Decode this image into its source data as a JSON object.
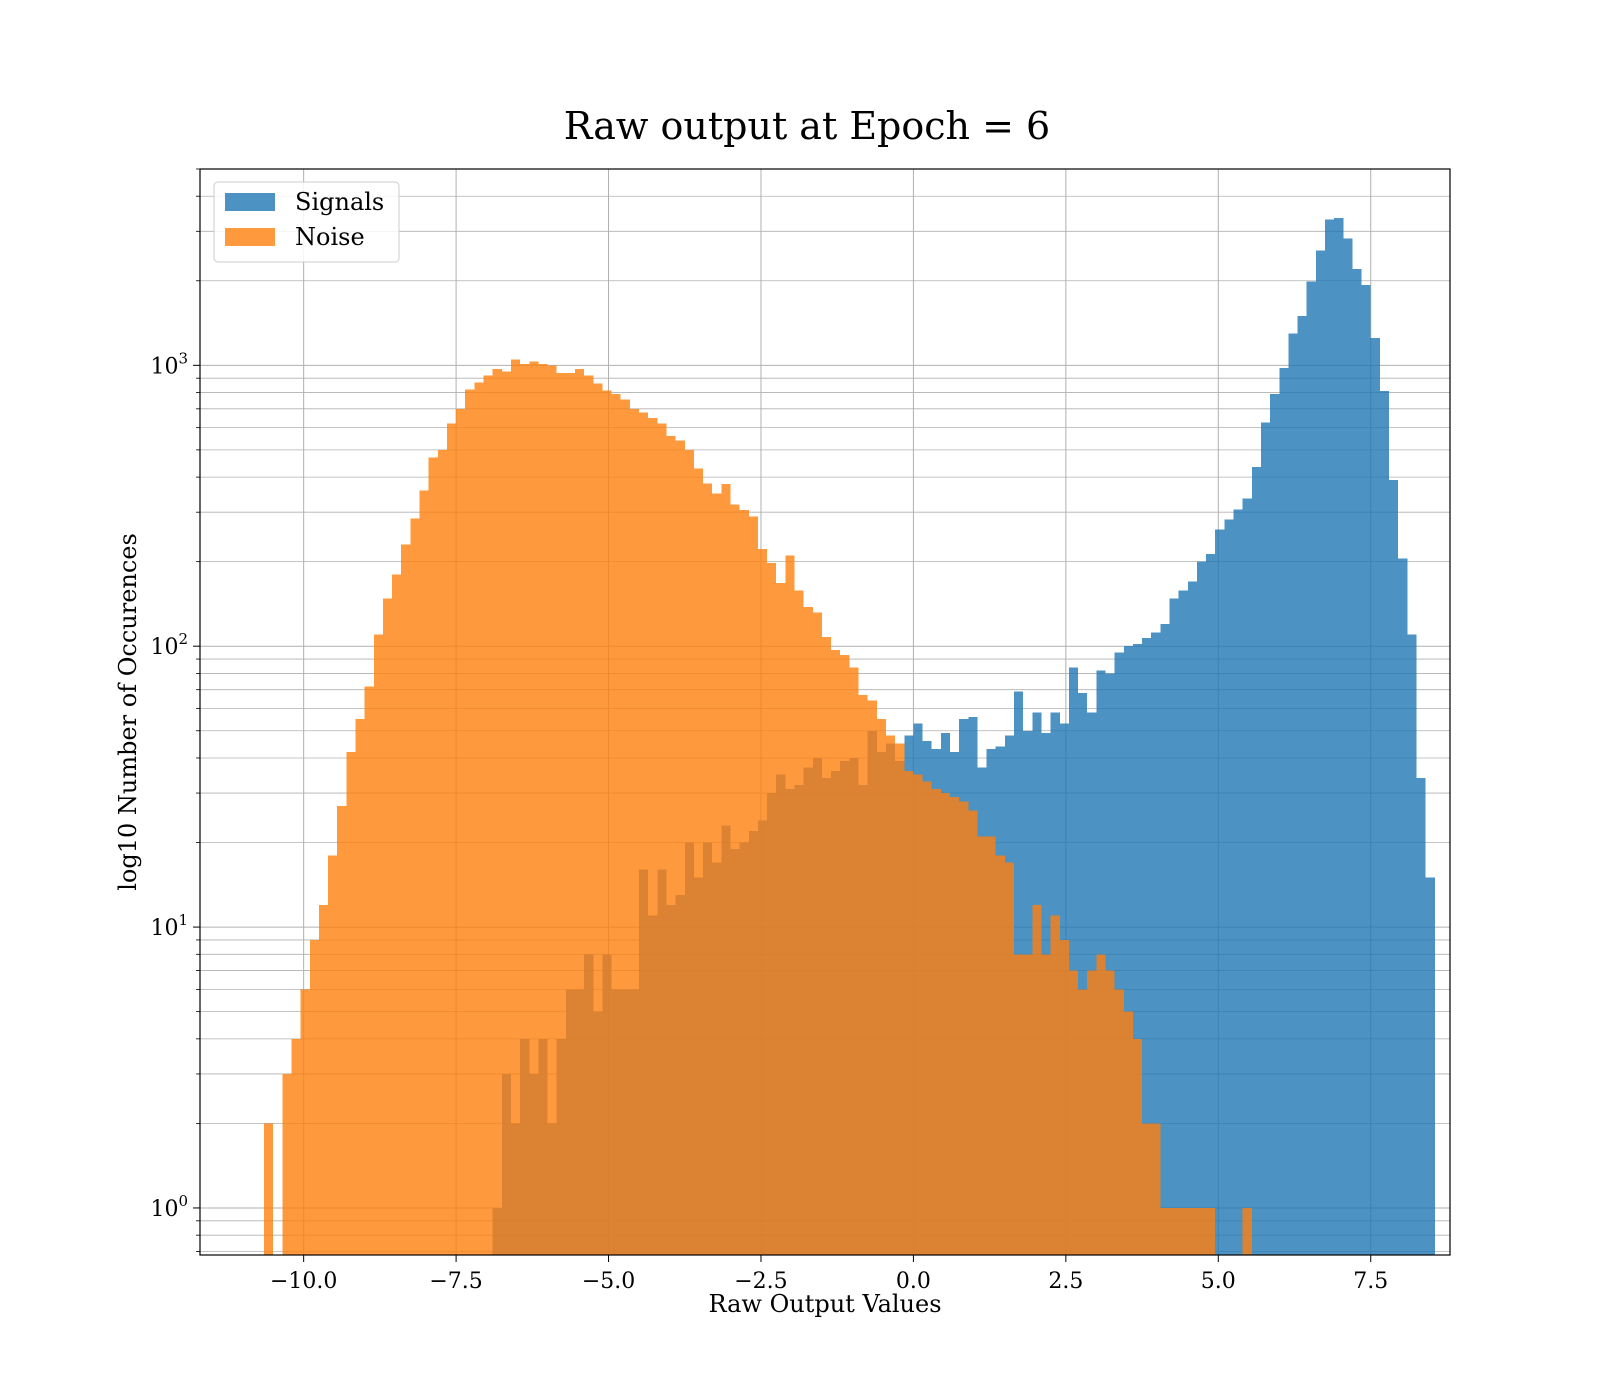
{
  "chart_data": {
    "type": "bar",
    "title": "Raw output at Epoch = 6",
    "xlabel": "Raw Output Values",
    "ylabel": "log10 Number of Occurences",
    "xscale": "linear",
    "yscale": "log",
    "xlim": [
      -11.7,
      8.8
    ],
    "ylim": [
      0.68,
      5000
    ],
    "grid": true,
    "legend": "top-left",
    "xticks": [
      {
        "value": -10,
        "label": "−10.0"
      },
      {
        "value": -7.5,
        "label": "−7.5"
      },
      {
        "value": -5,
        "label": "−5.0"
      },
      {
        "value": -2.5,
        "label": "−2.5"
      },
      {
        "value": 0,
        "label": "0.0"
      },
      {
        "value": 2.5,
        "label": "2.5"
      },
      {
        "value": 5,
        "label": "5.0"
      },
      {
        "value": 7.5,
        "label": "7.5"
      }
    ],
    "yticks": [
      {
        "value": 1,
        "base": "10",
        "exp": "0"
      },
      {
        "value": 10,
        "base": "10",
        "exp": "1"
      },
      {
        "value": 100,
        "base": "10",
        "exp": "2"
      },
      {
        "value": 1000,
        "base": "10",
        "exp": "3"
      }
    ],
    "series": [
      {
        "name": "Signals",
        "color": "#1f77b4",
        "opacity": 0.8,
        "bins": [
          [
            -6.9,
            -6.75,
            1
          ],
          [
            -6.75,
            -6.6,
            3
          ],
          [
            -6.6,
            -6.45,
            2
          ],
          [
            -6.45,
            -6.3,
            4
          ],
          [
            -6.3,
            -6.15,
            3
          ],
          [
            -6.15,
            -6.0,
            4
          ],
          [
            -6.0,
            -5.85,
            2
          ],
          [
            -5.85,
            -5.7,
            4
          ],
          [
            -5.7,
            -5.4,
            6
          ],
          [
            -5.4,
            -5.25,
            8
          ],
          [
            -5.25,
            -5.1,
            5
          ],
          [
            -5.1,
            -4.95,
            8
          ],
          [
            -4.95,
            -4.5,
            6
          ],
          [
            -4.5,
            -4.35,
            16
          ],
          [
            -4.35,
            -4.2,
            11
          ],
          [
            -4.2,
            -4.05,
            16
          ],
          [
            -4.05,
            -3.9,
            12
          ],
          [
            -3.9,
            -3.75,
            13
          ],
          [
            -3.75,
            -3.6,
            20
          ],
          [
            -3.6,
            -3.45,
            15
          ],
          [
            -3.45,
            -3.3,
            20
          ],
          [
            -3.3,
            -3.15,
            17
          ],
          [
            -3.15,
            -3.0,
            23
          ],
          [
            -3.0,
            -2.85,
            19
          ],
          [
            -2.85,
            -2.7,
            20
          ],
          [
            -2.7,
            -2.55,
            22
          ],
          [
            -2.55,
            -2.4,
            24
          ],
          [
            -2.4,
            -2.25,
            30
          ],
          [
            -2.25,
            -2.1,
            35
          ],
          [
            -2.1,
            -1.95,
            31
          ],
          [
            -1.95,
            -1.8,
            32
          ],
          [
            -1.8,
            -1.65,
            37
          ],
          [
            -1.65,
            -1.5,
            40
          ],
          [
            -1.5,
            -1.35,
            34
          ],
          [
            -1.35,
            -1.2,
            36
          ],
          [
            -1.2,
            -1.05,
            39
          ],
          [
            -1.05,
            -0.9,
            40
          ],
          [
            -0.9,
            -0.75,
            32
          ],
          [
            -0.75,
            -0.6,
            50
          ],
          [
            -0.6,
            -0.45,
            42
          ],
          [
            -0.45,
            -0.3,
            45
          ],
          [
            -0.3,
            -0.15,
            39
          ],
          [
            -0.15,
            0.0,
            48
          ],
          [
            0.0,
            0.15,
            53
          ],
          [
            0.15,
            0.3,
            46
          ],
          [
            0.3,
            0.45,
            43
          ],
          [
            0.45,
            0.6,
            49
          ],
          [
            0.6,
            0.75,
            42
          ],
          [
            0.75,
            0.9,
            55
          ],
          [
            0.9,
            1.05,
            56
          ],
          [
            1.05,
            1.2,
            37
          ],
          [
            1.2,
            1.35,
            43
          ],
          [
            1.35,
            1.5,
            44
          ],
          [
            1.5,
            1.65,
            48
          ],
          [
            1.65,
            1.8,
            69
          ],
          [
            1.8,
            1.95,
            50
          ],
          [
            1.95,
            2.1,
            58
          ],
          [
            2.1,
            2.25,
            49
          ],
          [
            2.25,
            2.4,
            58
          ],
          [
            2.4,
            2.55,
            53
          ],
          [
            2.55,
            2.7,
            84
          ],
          [
            2.7,
            2.85,
            68
          ],
          [
            2.85,
            3.0,
            58
          ],
          [
            3.0,
            3.15,
            82
          ],
          [
            3.15,
            3.3,
            80
          ],
          [
            3.3,
            3.45,
            95
          ],
          [
            3.45,
            3.6,
            100
          ],
          [
            3.6,
            3.75,
            102
          ],
          [
            3.75,
            3.9,
            107
          ],
          [
            3.9,
            4.05,
            112
          ],
          [
            4.05,
            4.2,
            120
          ],
          [
            4.2,
            4.35,
            148
          ],
          [
            4.35,
            4.5,
            158
          ],
          [
            4.5,
            4.65,
            170
          ],
          [
            4.65,
            4.8,
            200
          ],
          [
            4.8,
            4.95,
            213
          ],
          [
            4.95,
            5.1,
            260
          ],
          [
            5.1,
            5.25,
            282
          ],
          [
            5.25,
            5.4,
            307
          ],
          [
            5.4,
            5.55,
            335
          ],
          [
            5.55,
            5.7,
            435
          ],
          [
            5.7,
            5.85,
            625
          ],
          [
            5.85,
            6.0,
            790
          ],
          [
            6.0,
            6.15,
            980
          ],
          [
            6.15,
            6.3,
            1300
          ],
          [
            6.3,
            6.45,
            1500
          ],
          [
            6.45,
            6.6,
            1990
          ],
          [
            6.6,
            6.75,
            2560
          ],
          [
            6.75,
            6.9,
            3300
          ],
          [
            6.9,
            7.05,
            3350
          ],
          [
            7.05,
            7.2,
            2830
          ],
          [
            7.2,
            7.35,
            2200
          ],
          [
            7.35,
            7.5,
            1930
          ],
          [
            7.5,
            7.65,
            1250
          ],
          [
            7.65,
            7.8,
            810
          ],
          [
            7.8,
            7.95,
            390
          ],
          [
            7.95,
            8.1,
            205
          ],
          [
            8.1,
            8.25,
            110
          ],
          [
            8.25,
            8.4,
            34
          ],
          [
            8.4,
            8.55,
            15
          ]
        ]
      },
      {
        "name": "Noise",
        "color": "#ff7f0e",
        "opacity": 0.8,
        "bins": [
          [
            -10.65,
            -10.5,
            2
          ],
          [
            -10.35,
            -10.2,
            3
          ],
          [
            -10.2,
            -10.05,
            4
          ],
          [
            -10.05,
            -9.9,
            6
          ],
          [
            -9.9,
            -9.75,
            9
          ],
          [
            -9.75,
            -9.6,
            12
          ],
          [
            -9.6,
            -9.45,
            18
          ],
          [
            -9.45,
            -9.3,
            27
          ],
          [
            -9.3,
            -9.15,
            42
          ],
          [
            -9.15,
            -9.0,
            55
          ],
          [
            -9.0,
            -8.85,
            72
          ],
          [
            -8.85,
            -8.7,
            110
          ],
          [
            -8.7,
            -8.55,
            148
          ],
          [
            -8.55,
            -8.4,
            180
          ],
          [
            -8.4,
            -8.25,
            230
          ],
          [
            -8.25,
            -8.1,
            285
          ],
          [
            -8.1,
            -7.95,
            358
          ],
          [
            -7.95,
            -7.8,
            470
          ],
          [
            -7.8,
            -7.65,
            500
          ],
          [
            -7.65,
            -7.5,
            620
          ],
          [
            -7.5,
            -7.35,
            700
          ],
          [
            -7.35,
            -7.2,
            820
          ],
          [
            -7.2,
            -7.05,
            870
          ],
          [
            -7.05,
            -6.9,
            920
          ],
          [
            -6.9,
            -6.75,
            970
          ],
          [
            -6.75,
            -6.6,
            950
          ],
          [
            -6.6,
            -6.45,
            1050
          ],
          [
            -6.45,
            -6.3,
            1010
          ],
          [
            -6.3,
            -6.15,
            1030
          ],
          [
            -6.15,
            -6.0,
            1010
          ],
          [
            -6.0,
            -5.85,
            1000
          ],
          [
            -5.85,
            -5.7,
            940
          ],
          [
            -5.7,
            -5.55,
            940
          ],
          [
            -5.55,
            -5.4,
            970
          ],
          [
            -5.4,
            -5.25,
            920
          ],
          [
            -5.25,
            -5.1,
            860
          ],
          [
            -5.1,
            -4.95,
            815
          ],
          [
            -4.95,
            -4.8,
            790
          ],
          [
            -4.8,
            -4.65,
            755
          ],
          [
            -4.65,
            -4.5,
            700
          ],
          [
            -4.5,
            -4.35,
            680
          ],
          [
            -4.35,
            -4.2,
            650
          ],
          [
            -4.2,
            -4.05,
            620
          ],
          [
            -4.05,
            -3.9,
            560
          ],
          [
            -3.9,
            -3.75,
            540
          ],
          [
            -3.75,
            -3.6,
            500
          ],
          [
            -3.6,
            -3.45,
            430
          ],
          [
            -3.45,
            -3.3,
            380
          ],
          [
            -3.3,
            -3.15,
            350
          ],
          [
            -3.15,
            -3.0,
            378
          ],
          [
            -3.0,
            -2.85,
            320
          ],
          [
            -2.85,
            -2.7,
            305
          ],
          [
            -2.7,
            -2.55,
            290
          ],
          [
            -2.55,
            -2.4,
            222
          ],
          [
            -2.4,
            -2.25,
            198
          ],
          [
            -2.25,
            -2.1,
            168
          ],
          [
            -2.1,
            -1.95,
            210
          ],
          [
            -1.95,
            -1.8,
            158
          ],
          [
            -1.8,
            -1.65,
            138
          ],
          [
            -1.65,
            -1.5,
            132
          ],
          [
            -1.5,
            -1.35,
            108
          ],
          [
            -1.35,
            -1.2,
            97
          ],
          [
            -1.2,
            -1.05,
            93
          ],
          [
            -1.05,
            -0.9,
            84
          ],
          [
            -0.9,
            -0.75,
            67
          ],
          [
            -0.75,
            -0.6,
            64
          ],
          [
            -0.6,
            -0.45,
            55
          ],
          [
            -0.45,
            -0.3,
            48
          ],
          [
            -0.3,
            -0.15,
            45
          ],
          [
            -0.15,
            0.0,
            36
          ],
          [
            0.0,
            0.15,
            35
          ],
          [
            0.15,
            0.3,
            33
          ],
          [
            0.3,
            0.45,
            31
          ],
          [
            0.45,
            0.6,
            30
          ],
          [
            0.6,
            0.75,
            29
          ],
          [
            0.75,
            0.9,
            28
          ],
          [
            0.9,
            1.05,
            26
          ],
          [
            1.05,
            1.2,
            21
          ],
          [
            1.2,
            1.35,
            21
          ],
          [
            1.35,
            1.5,
            18
          ],
          [
            1.5,
            1.65,
            17
          ],
          [
            1.65,
            1.8,
            8
          ],
          [
            1.8,
            1.95,
            8
          ],
          [
            1.95,
            2.1,
            12
          ],
          [
            2.1,
            2.25,
            8
          ],
          [
            2.25,
            2.4,
            11
          ],
          [
            2.4,
            2.55,
            9
          ],
          [
            2.55,
            2.7,
            7
          ],
          [
            2.7,
            2.85,
            6
          ],
          [
            2.85,
            3.0,
            7
          ],
          [
            3.0,
            3.15,
            8
          ],
          [
            3.15,
            3.3,
            7
          ],
          [
            3.3,
            3.45,
            6
          ],
          [
            3.45,
            3.6,
            5
          ],
          [
            3.6,
            3.75,
            4
          ],
          [
            3.75,
            3.9,
            2
          ],
          [
            3.9,
            4.05,
            2
          ],
          [
            4.05,
            4.2,
            1
          ],
          [
            4.2,
            4.35,
            1
          ],
          [
            4.35,
            4.5,
            1
          ],
          [
            4.5,
            4.65,
            1
          ],
          [
            4.65,
            4.8,
            1
          ],
          [
            4.8,
            4.95,
            1
          ],
          [
            5.4,
            5.55,
            1
          ]
        ]
      }
    ]
  }
}
